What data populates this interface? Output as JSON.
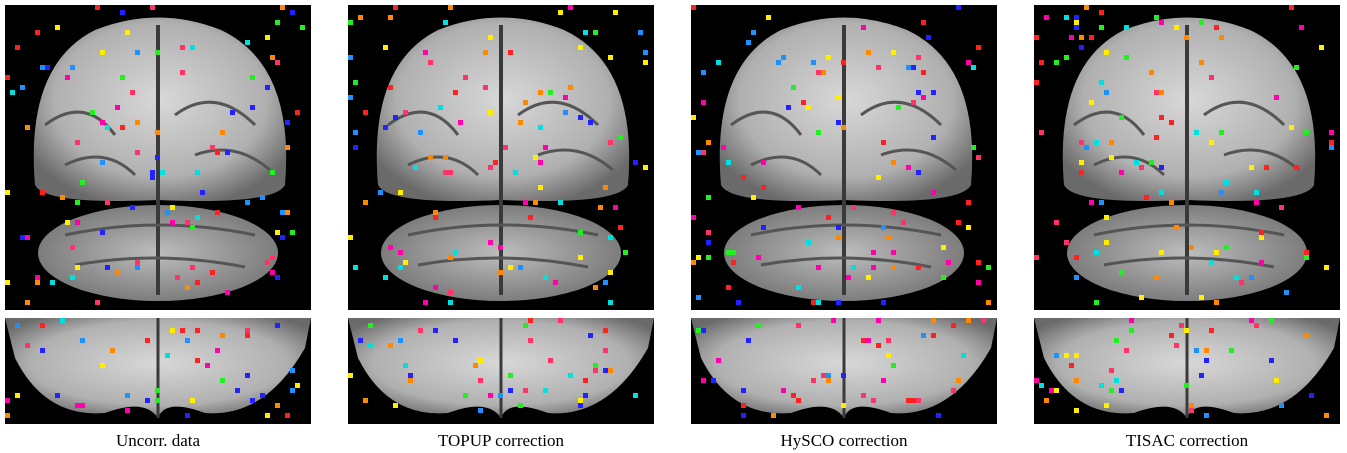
{
  "panels": [
    {
      "caption": "Uncorr. data"
    },
    {
      "caption": "TOPUP correction"
    },
    {
      "caption": "HySCO correction"
    },
    {
      "caption": "TISAC correction"
    }
  ]
}
